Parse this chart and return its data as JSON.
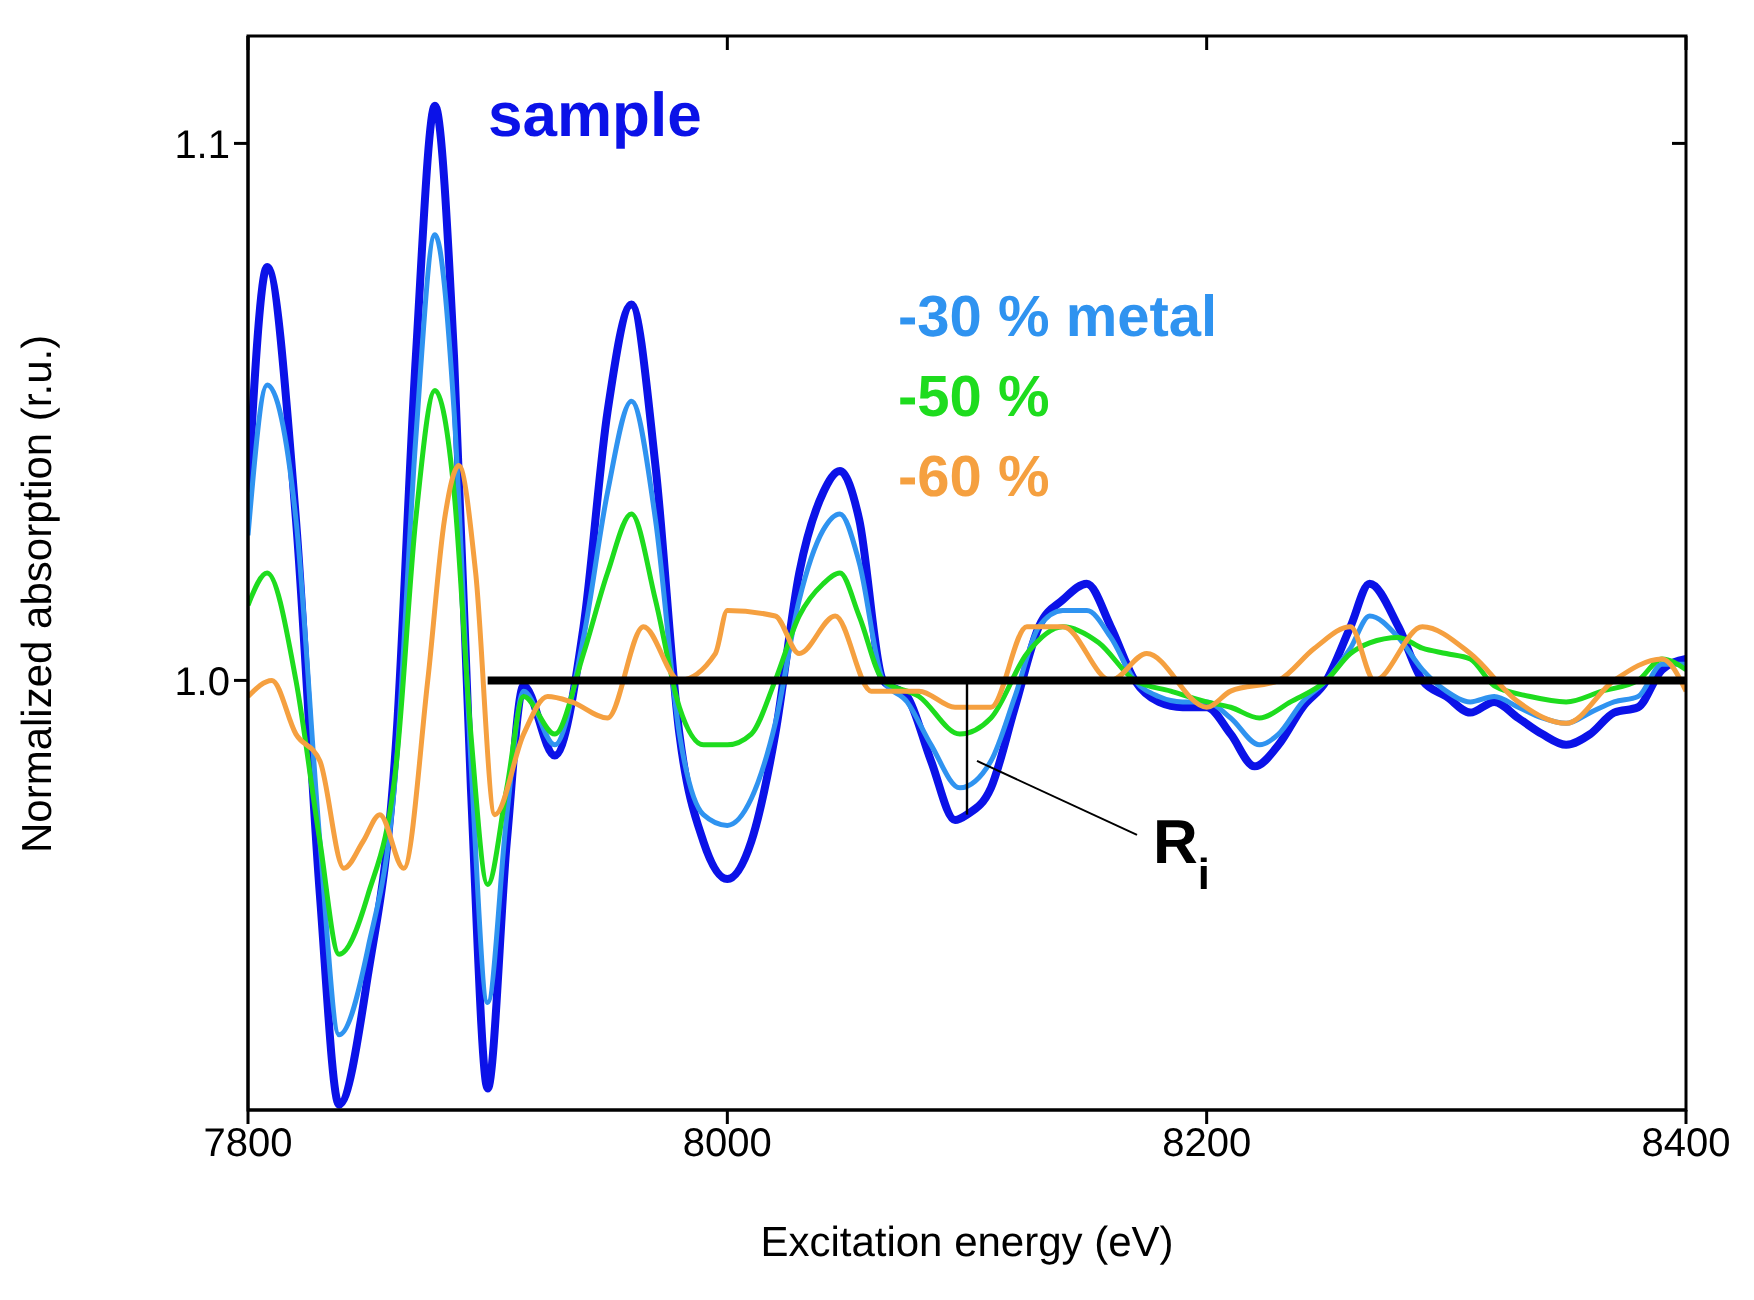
{
  "chart_data": {
    "type": "line",
    "xlabel": "Excitation energy (eV)",
    "ylabel": "Normalized absorption (r.u.)",
    "xlim": [
      7800,
      8400
    ],
    "xticks": [
      7800,
      8000,
      8200,
      8400
    ],
    "ylim": [
      0.92,
      1.12
    ],
    "yticks": [
      {
        "value": 1,
        "label": "1.0"
      },
      {
        "value": 1.1,
        "label": "1.1"
      }
    ],
    "legend": "top",
    "marker": "none",
    "line_style": "solid",
    "series": [
      {
        "name": "sample",
        "color": "#0b12e8",
        "x": [
          7800,
          7808,
          7820,
          7830,
          7838,
          7850,
          7862,
          7870,
          7878,
          7886,
          7893,
          7900,
          7908,
          7915,
          7928,
          7940,
          7950,
          7960,
          7970,
          7980,
          7990,
          8000,
          8010,
          8020,
          8030,
          8040,
          8047,
          8055,
          8065,
          8075,
          8085,
          8095,
          8100,
          8110,
          8120,
          8130,
          8140,
          8150,
          8160,
          8170,
          8180,
          8190,
          8200,
          8210,
          8220,
          8230,
          8240,
          8250,
          8260,
          8268,
          8280,
          8290,
          8300,
          8310,
          8320,
          8330,
          8340,
          8350,
          8360,
          8370,
          8380,
          8390,
          8400
        ],
        "values": [
          1.035,
          1.077,
          1.03,
          0.96,
          0.921,
          0.945,
          0.99,
          1.06,
          1.107,
          1.06,
          0.98,
          0.924,
          0.97,
          0.999,
          0.986,
          1.01,
          1.05,
          1.07,
          1.04,
          0.99,
          0.97,
          0.963,
          0.97,
          0.99,
          1.02,
          1.035,
          1.039,
          1.03,
          1.0,
          0.997,
          0.985,
          0.974,
          0.975,
          0.98,
          0.995,
          1.01,
          1.015,
          1.018,
          1.01,
          1.0,
          0.996,
          0.995,
          0.995,
          0.99,
          0.984,
          0.988,
          0.995,
          1.0,
          1.01,
          1.018,
          1.01,
          1.0,
          0.997,
          0.994,
          0.996,
          0.993,
          0.99,
          0.988,
          0.99,
          0.994,
          0.995,
          1.002,
          1.004
        ]
      },
      {
        "name": "-30 % metal",
        "color": "#2f93f0",
        "x": [
          7800,
          7808,
          7820,
          7830,
          7838,
          7850,
          7862,
          7870,
          7878,
          7886,
          7893,
          7900,
          7908,
          7915,
          7928,
          7940,
          7950,
          7960,
          7970,
          7980,
          7990,
          8000,
          8010,
          8020,
          8030,
          8040,
          8047,
          8055,
          8065,
          8075,
          8085,
          8097,
          8110,
          8120,
          8130,
          8140,
          8150,
          8160,
          8170,
          8180,
          8190,
          8200,
          8210,
          8222,
          8230,
          8240,
          8250,
          8260,
          8268,
          8280,
          8290,
          8300,
          8310,
          8320,
          8330,
          8340,
          8350,
          8360,
          8370,
          8380,
          8390,
          8400
        ],
        "values": [
          1.027,
          1.055,
          1.03,
          0.97,
          0.934,
          0.95,
          0.985,
          1.045,
          1.083,
          1.05,
          0.985,
          0.94,
          0.975,
          0.998,
          0.988,
          1.008,
          1.035,
          1.052,
          1.03,
          0.99,
          0.975,
          0.973,
          0.978,
          0.992,
          1.015,
          1.028,
          1.031,
          1.022,
          1.0,
          0.996,
          0.988,
          0.98,
          0.985,
          0.997,
          1.01,
          1.013,
          1.013,
          1.008,
          1.0,
          0.997,
          0.996,
          0.996,
          0.993,
          0.988,
          0.99,
          0.996,
          1.0,
          1.006,
          1.012,
          1.008,
          1.002,
          0.998,
          0.996,
          0.997,
          0.995,
          0.993,
          0.992,
          0.994,
          0.996,
          0.997,
          1.003,
          1.003
        ]
      },
      {
        "name": "-50 %",
        "color": "#1edc1e",
        "x": [
          7800,
          7808,
          7820,
          7830,
          7838,
          7850,
          7862,
          7870,
          7878,
          7886,
          7893,
          7900,
          7908,
          7915,
          7928,
          7940,
          7950,
          7960,
          7970,
          7980,
          7990,
          8000,
          8010,
          8020,
          8030,
          8040,
          8047,
          8055,
          8065,
          8080,
          8097,
          8110,
          8125,
          8140,
          8155,
          8170,
          8185,
          8200,
          8210,
          8222,
          8235,
          8250,
          8260,
          8268,
          8280,
          8290,
          8300,
          8310,
          8320,
          8335,
          8350,
          8365,
          8380,
          8390,
          8400
        ],
        "values": [
          1.014,
          1.02,
          1.0,
          0.97,
          0.949,
          0.96,
          0.985,
          1.03,
          1.054,
          1.035,
          0.99,
          0.962,
          0.98,
          0.997,
          0.99,
          1.005,
          1.02,
          1.031,
          1.015,
          0.995,
          0.988,
          0.988,
          0.99,
          1.0,
          1.012,
          1.018,
          1.02,
          1.012,
          1.0,
          0.997,
          0.99,
          0.993,
          1.005,
          1.01,
          1.007,
          1.0,
          0.998,
          0.996,
          0.995,
          0.993,
          0.996,
          1.0,
          1.005,
          1.007,
          1.008,
          1.006,
          1.005,
          1.004,
          0.999,
          0.997,
          0.996,
          0.998,
          1.0,
          1.004,
          1.002
        ]
      },
      {
        "name": "-60 %",
        "color": "#f5a040",
        "x": [
          7800,
          7810,
          7820,
          7830,
          7840,
          7848,
          7855,
          7865,
          7875,
          7882,
          7888,
          7895,
          7903,
          7915,
          7925,
          7935,
          7950,
          7965,
          7980,
          7995,
          8000,
          8020,
          8030,
          8045,
          8060,
          8080,
          8095,
          8110,
          8125,
          8140,
          8160,
          8175,
          8200,
          8210,
          8230,
          8245,
          8260,
          8270,
          8290,
          8310,
          8330,
          8350,
          8370,
          8390,
          8400
        ],
        "values": [
          0.997,
          1.0,
          0.99,
          0.985,
          0.965,
          0.97,
          0.975,
          0.965,
          1.0,
          1.03,
          1.04,
          1.02,
          0.975,
          0.99,
          0.997,
          0.996,
          0.993,
          1.01,
          1.0,
          1.005,
          1.013,
          1.012,
          1.005,
          1.012,
          0.998,
          0.998,
          0.995,
          0.995,
          1.01,
          1.01,
          1.0,
          1.005,
          0.995,
          0.998,
          1.0,
          1.006,
          1.01,
          1.0,
          1.01,
          1.005,
          0.996,
          0.992,
          1.0,
          1.004,
          0.998
        ]
      },
      {
        "color": "#000000",
        "x": [
          7900,
          8400
        ],
        "values": [
          1,
          1
        ]
      },
      {
        "color": "#000000",
        "x": [
          8100,
          8100
        ],
        "values": [
          1,
          0.975
        ]
      }
    ],
    "annotations": [
      {
        "text": "R$_{i}$",
        "x": 8100,
        "y": 0.985
      }
    ]
  }
}
